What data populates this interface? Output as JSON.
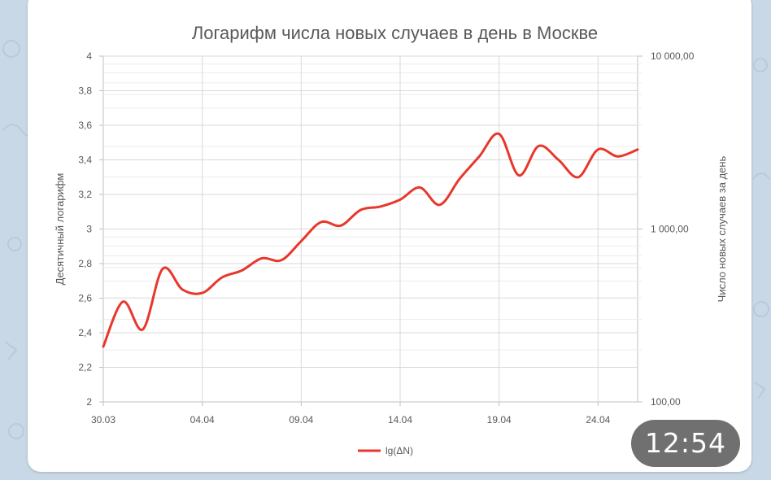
{
  "chart_data": {
    "type": "line",
    "title": "Логарифм числа новых случаев в день в Москве",
    "ylabel": "Десятичный логарифм",
    "y2label": "Число новых случаев за день",
    "ylim": [
      2,
      4
    ],
    "y_ticks": [
      "4",
      "3,8",
      "3,6",
      "3,4",
      "3,2",
      "3",
      "2,8",
      "2,6",
      "2,4",
      "2,2",
      "2"
    ],
    "y2_ticks": [
      "10 000,00",
      "1 000,00",
      "100,00"
    ],
    "x_tick_labels": [
      "30.03",
      "04.04",
      "09.04",
      "14.04",
      "19.04",
      "24.04"
    ],
    "grid": true,
    "legend_position": "bottom",
    "x": [
      "30.03",
      "31.03",
      "01.04",
      "02.04",
      "03.04",
      "04.04",
      "05.04",
      "06.04",
      "07.04",
      "08.04",
      "09.04",
      "10.04",
      "11.04",
      "12.04",
      "13.04",
      "14.04",
      "15.04",
      "16.04",
      "17.04",
      "18.04",
      "19.04",
      "20.04",
      "21.04",
      "22.04",
      "23.04",
      "24.04",
      "25.04",
      "26.04"
    ],
    "series": [
      {
        "name": "lg(ΔN)",
        "color": "#e8372c",
        "values": [
          2.32,
          2.58,
          2.42,
          2.77,
          2.65,
          2.63,
          2.72,
          2.76,
          2.83,
          2.82,
          2.93,
          3.04,
          3.02,
          3.11,
          3.13,
          3.17,
          3.24,
          3.14,
          3.29,
          3.42,
          3.55,
          3.31,
          3.48,
          3.4,
          3.3,
          3.46,
          3.42,
          3.46
        ]
      }
    ]
  },
  "status": {
    "time": "12:54"
  }
}
